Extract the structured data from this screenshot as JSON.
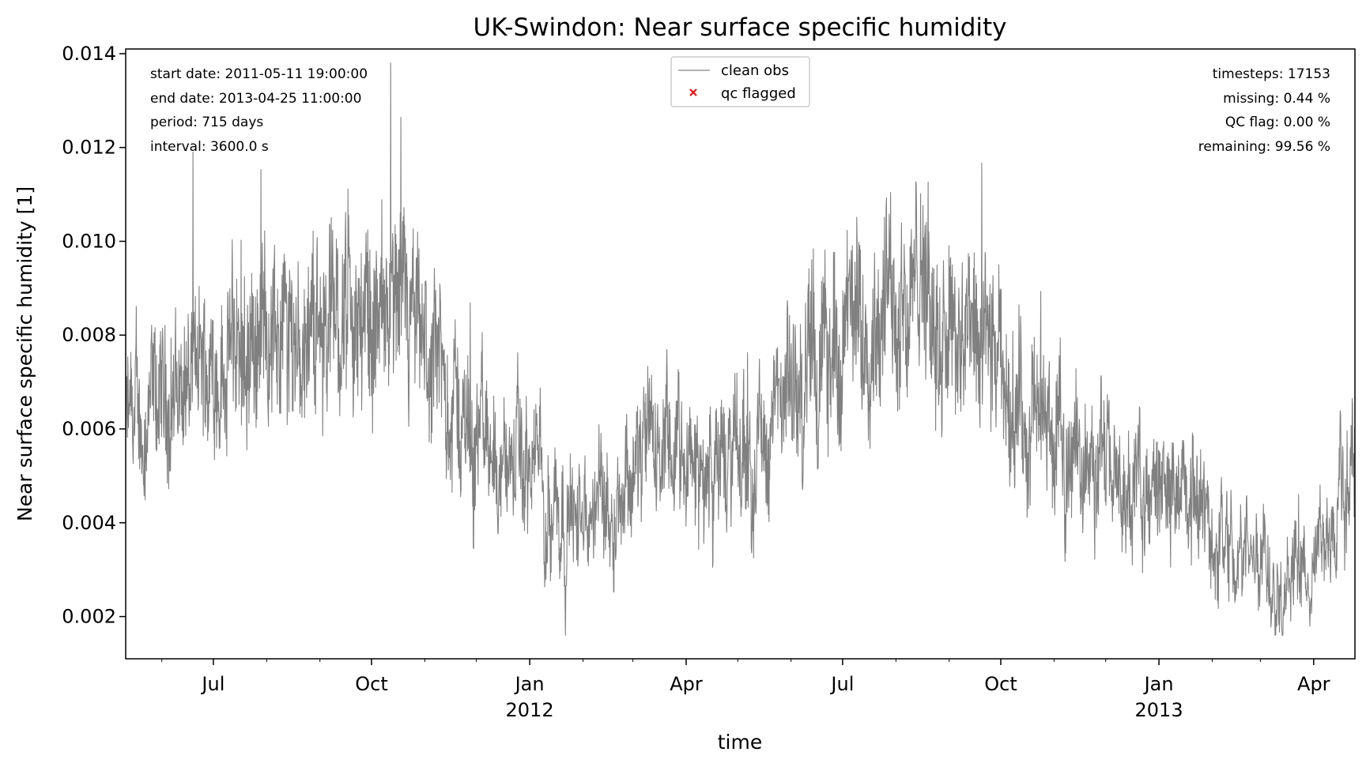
{
  "chart_data": {
    "type": "line",
    "title": "UK-Swindon: Near surface specific humidity",
    "xlabel": "time",
    "ylabel": "Near surface specific humidity [1]",
    "xlim": [
      "2011-05-11",
      "2013-04-25"
    ],
    "ylim": [
      0.0011,
      0.0141
    ],
    "yticks": [
      "0.002",
      "0.004",
      "0.006",
      "0.008",
      "0.010",
      "0.012",
      "0.014"
    ],
    "xticks": [
      {
        "date": "2011-07-01",
        "label": "Jul",
        "sublabel": ""
      },
      {
        "date": "2011-10-01",
        "label": "Oct",
        "sublabel": ""
      },
      {
        "date": "2012-01-01",
        "label": "Jan",
        "sublabel": "2012"
      },
      {
        "date": "2012-04-01",
        "label": "Apr",
        "sublabel": ""
      },
      {
        "date": "2012-07-01",
        "label": "Jul",
        "sublabel": ""
      },
      {
        "date": "2012-10-01",
        "label": "Oct",
        "sublabel": ""
      },
      {
        "date": "2013-01-01",
        "label": "Jan",
        "sublabel": "2013"
      },
      {
        "date": "2013-04-01",
        "label": "Apr",
        "sublabel": ""
      }
    ],
    "legend": {
      "placement": "top-center",
      "entries": [
        {
          "label": "clean obs",
          "marker": "line",
          "color": "#808080"
        },
        {
          "label": "qc flagged",
          "marker": "x",
          "color": "#ff0000"
        }
      ]
    },
    "info_left": [
      "start date: 2011-05-11 19:00:00",
      "end date: 2013-04-25 11:00:00",
      "period: 715 days",
      "interval: 3600.0 s"
    ],
    "info_right": [
      "timesteps: 17153",
      "missing: 0.44 %",
      "QC flag: 0.00 %",
      "remaining: 99.56 %"
    ],
    "line_color": "#808080",
    "series": [
      {
        "x": [
          "2011-05-11",
          "2011-05-25",
          "2011-06-08",
          "2011-06-22",
          "2011-07-06",
          "2011-07-20",
          "2011-08-03",
          "2011-08-17",
          "2011-08-31",
          "2011-09-14",
          "2011-09-28",
          "2011-10-12",
          "2011-10-26",
          "2011-11-09",
          "2011-11-23",
          "2011-12-07",
          "2011-12-21",
          "2012-01-04",
          "2012-01-18",
          "2012-02-01",
          "2012-02-15",
          "2012-02-29",
          "2012-03-14",
          "2012-03-28",
          "2012-04-11",
          "2012-04-25",
          "2012-05-09",
          "2012-05-23",
          "2012-06-06",
          "2012-06-20",
          "2012-07-04",
          "2012-07-18",
          "2012-08-01",
          "2012-08-15",
          "2012-08-29",
          "2012-09-12",
          "2012-09-26",
          "2012-10-10",
          "2012-10-24",
          "2012-11-07",
          "2012-11-21",
          "2012-12-05",
          "2012-12-19",
          "2013-01-02",
          "2013-01-16",
          "2013-01-30",
          "2013-02-13",
          "2013-02-27",
          "2013-03-13",
          "2013-03-27",
          "2013-04-10",
          "2013-04-25"
        ],
        "y": [
          0.006,
          0.0062,
          0.0068,
          0.0071,
          0.0075,
          0.0078,
          0.0082,
          0.008,
          0.0083,
          0.0085,
          0.0082,
          0.0084,
          0.0078,
          0.007,
          0.0062,
          0.0057,
          0.0052,
          0.0051,
          0.0045,
          0.0038,
          0.0047,
          0.0052,
          0.0056,
          0.0052,
          0.005,
          0.0053,
          0.0055,
          0.0061,
          0.007,
          0.0074,
          0.008,
          0.0085,
          0.0089,
          0.009,
          0.0084,
          0.0077,
          0.0072,
          0.0066,
          0.006,
          0.0057,
          0.0054,
          0.0049,
          0.0045,
          0.0048,
          0.0045,
          0.0039,
          0.0036,
          0.0035,
          0.0032,
          0.0028,
          0.0034,
          0.0055
        ]
      }
    ]
  }
}
